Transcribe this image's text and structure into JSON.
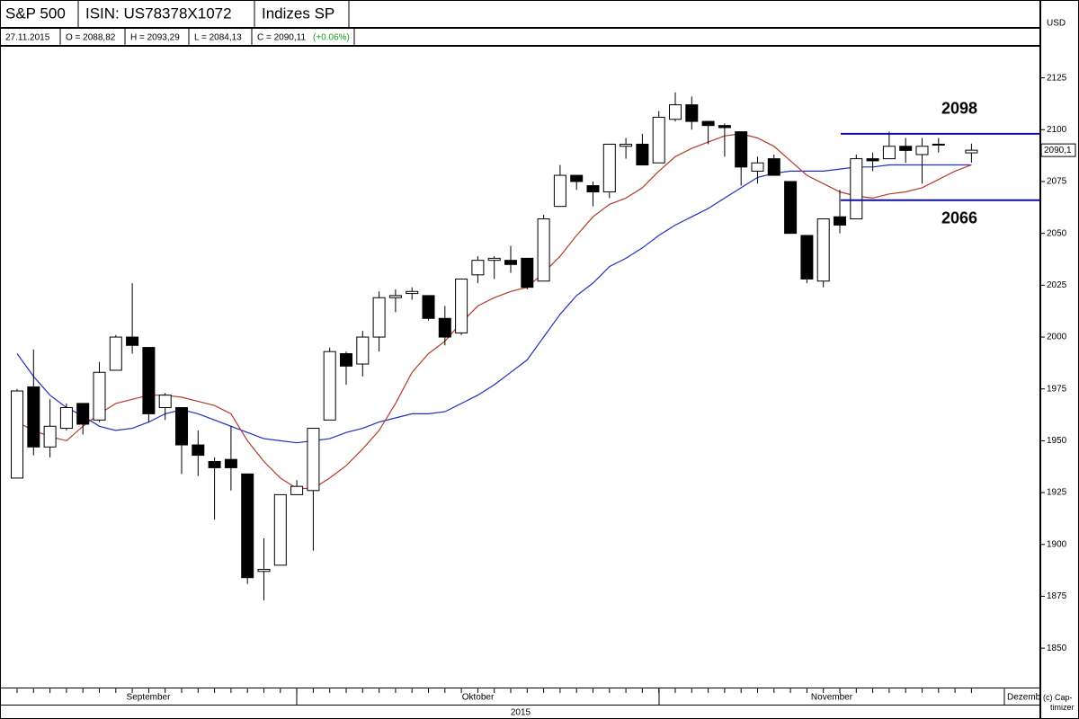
{
  "chart_data": {
    "type": "candlestick",
    "title": "S&P 500",
    "isin": "ISIN: US78378X1072",
    "index_group": "Indizes SP",
    "info": {
      "date": "27.11.2015",
      "open": "O = 2088,82",
      "high": "H = 2093,29",
      "low": "L = 2084,13",
      "close": "C = 2090,11",
      "change": "(+0.06%)"
    },
    "y_axis_label": "USD",
    "months": [
      "September",
      "Oktober",
      "November",
      "Dezemb"
    ],
    "year": "2015",
    "copyright": "(c) Cap-timizer",
    "categories": [
      null,
      null,
      null,
      null,
      null,
      null,
      null,
      null,
      null,
      null,
      null,
      null,
      null,
      null,
      null,
      null,
      null,
      null,
      null,
      null,
      null,
      null,
      null,
      null,
      null,
      null,
      null,
      null,
      null,
      null,
      null,
      null,
      null,
      null,
      null,
      null,
      null,
      null,
      null,
      null,
      null,
      null,
      null,
      null,
      null,
      null,
      null,
      null,
      null,
      null,
      null,
      null,
      null,
      null,
      null,
      null,
      null,
      null,
      null
    ],
    "open": [
      1932,
      1976,
      1947,
      1956,
      1968,
      1960,
      1984,
      2000,
      1995,
      1966,
      1966,
      1948,
      1940,
      1941,
      1934,
      1887,
      1890,
      1924,
      1926,
      1960,
      1992,
      1987,
      2000,
      2019,
      2021,
      2020,
      2009,
      2002,
      2030,
      2037,
      2037,
      2038,
      2027,
      2063,
      2078,
      2073,
      2070,
      2092,
      2093,
      2084,
      2105,
      2112,
      2104,
      2102,
      2099,
      2080,
      2086,
      2075,
      2049,
      2027,
      2058,
      2057,
      2086,
      2086,
      2092,
      2088,
      2093,
      null,
      2088.82
    ],
    "high": [
      1975,
      1994,
      1970,
      1968,
      1968,
      1988,
      2001,
      2026,
      1995,
      1973,
      1966,
      1955,
      1942,
      1957,
      1934,
      1903,
      1924,
      1931,
      1956,
      1995,
      1993,
      2003,
      2022,
      2023,
      2024,
      2020,
      2015,
      2028,
      2039,
      2039,
      2044,
      2038,
      2059,
      2083,
      2078,
      2075,
      2093,
      2096,
      2098,
      2109,
      2118,
      2116,
      2104,
      2103,
      2099,
      2087,
      2088,
      2075,
      2049,
      2057,
      2071,
      2088,
      2089,
      2099,
      2096,
      2096,
      2096,
      null,
      2093.29
    ],
    "low": [
      1932,
      1943,
      1942,
      1955,
      1953,
      1959,
      1984,
      1992,
      1959,
      1960,
      1934,
      1933,
      1912,
      1926,
      1881,
      1873,
      1890,
      1924,
      1897,
      1960,
      1977,
      1981,
      1993,
      2012,
      2018,
      2008,
      1996,
      2001,
      2026,
      2028,
      2031,
      2023,
      2027,
      2063,
      2071,
      2063,
      2067,
      2086,
      2083,
      2084,
      2104,
      2100,
      2093,
      2087,
      2073,
      2074,
      2078,
      2050,
      2026,
      2024,
      2050,
      2057,
      2080,
      2086,
      2084,
      2074,
      2089,
      null,
      2084.13
    ],
    "close": [
      1974,
      1947,
      1957,
      1966,
      1958,
      1983,
      2000,
      1996,
      1963,
      1972,
      1948,
      1943,
      1937,
      1937,
      1884,
      1888,
      1924,
      1928,
      1956,
      1993,
      1986,
      2000,
      2019,
      2020,
      2022,
      2009,
      2000,
      2028,
      2037,
      2038,
      2035,
      2024,
      2057,
      2078,
      2075,
      2070,
      2093,
      2093,
      2083,
      2106,
      2112,
      2104,
      2102,
      2101,
      2082,
      2084,
      2078,
      2050,
      2028,
      2057,
      2054,
      2086,
      2085,
      2092,
      2090,
      2092,
      2093,
      null,
      2090.11
    ],
    "last_price_label": "2090,1",
    "up_color": "#ffffff",
    "down_color": "#000000",
    "series": [
      {
        "color": "#1f2fbf",
        "values": [
          1992,
          1981,
          1972,
          1966,
          1962,
          1957,
          1955,
          1956,
          1959,
          1963,
          1965,
          1963,
          1960,
          1957,
          1954,
          1951,
          1950,
          1949,
          1950,
          1951,
          1954,
          1956,
          1959,
          1961,
          1963,
          1963,
          1964,
          1968,
          1972,
          1977,
          1983,
          1989,
          2000,
          2011,
          2020,
          2026,
          2034,
          2038,
          2043,
          2049,
          2054,
          2058,
          2062,
          2067,
          2072,
          2077,
          2079,
          2080,
          2080,
          2080,
          2081,
          2082,
          2082,
          2083,
          2083,
          2083,
          2083,
          2083,
          2083
        ]
      },
      {
        "color": "#b33a2a",
        "values": [
          1959,
          1955,
          1952,
          1950,
          1957,
          1963,
          1968,
          1970,
          1972,
          1972,
          1971,
          1969,
          1967,
          1963,
          1950,
          1940,
          1932,
          1927,
          1927,
          1932,
          1938,
          1946,
          1955,
          1968,
          1983,
          1992,
          1998,
          2007,
          2015,
          2019,
          2022,
          2024,
          2031,
          2039,
          2049,
          2058,
          2064,
          2067,
          2072,
          2080,
          2087,
          2091,
          2094,
          2097,
          2098,
          2096,
          2092,
          2085,
          2078,
          2074,
          2070,
          2068,
          2067,
          2069,
          2070,
          2072,
          2076,
          2080,
          2083
        ]
      }
    ],
    "hlines": [
      2098,
      2066
    ],
    "hline_color": "#1010a0",
    "ylim": [
      1831,
      2140
    ],
    "yticks": [
      1850,
      1875,
      1900,
      1925,
      1950,
      1975,
      2000,
      2025,
      2050,
      2075,
      2100,
      2125
    ]
  }
}
